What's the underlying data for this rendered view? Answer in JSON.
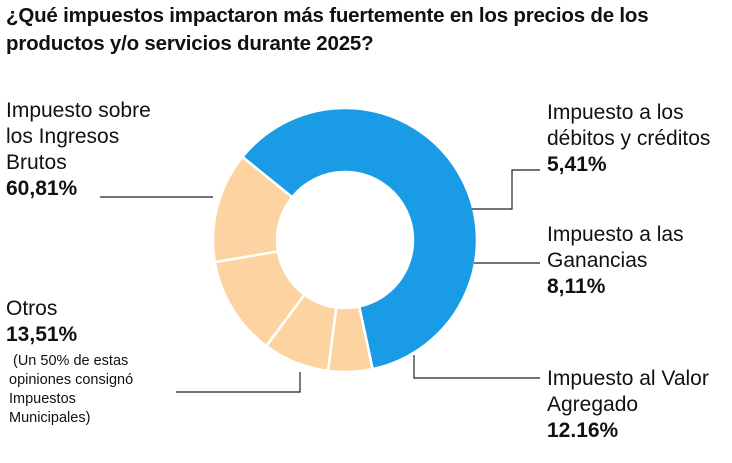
{
  "title": {
    "line1": "¿Qué impuestos impactaron más fuertemente en los precios de los",
    "line2": "productos y/o servicios durante 2025?"
  },
  "colors": {
    "primary": "#1a9be6",
    "secondary": "#fdd4a1",
    "separator": "#ffffff",
    "leader": "#222222"
  },
  "chart_data": {
    "type": "pie",
    "title": "¿Qué impuestos impactaron más fuertemente en los precios de los productos y/o servicios durante 2025?",
    "variant": "donut",
    "slices": [
      {
        "key": "iibb",
        "name_lines": [
          "Impuesto sobre",
          "los Ingresos",
          "Brutos"
        ],
        "value": 60.81,
        "value_label": "60,81%",
        "color": "#1a9be6"
      },
      {
        "key": "debitos",
        "name_lines": [
          "Impuesto a los",
          "débitos y créditos"
        ],
        "value": 5.41,
        "value_label": "5,41%",
        "color": "#fdd4a1"
      },
      {
        "key": "ganancias",
        "name_lines": [
          "Impuesto a las",
          "Ganancias"
        ],
        "value": 8.11,
        "value_label": "8,11%",
        "color": "#fdd4a1"
      },
      {
        "key": "iva",
        "name_lines": [
          "Impuesto al Valor",
          "Agregado"
        ],
        "value": 12.16,
        "value_label": "12.16%",
        "color": "#fdd4a1"
      },
      {
        "key": "otros",
        "name_lines": [
          "Otros"
        ],
        "value": 13.51,
        "value_label": "13,51%",
        "color": "#fdd4a1"
      }
    ],
    "otros_note": [
      "(Un 50% de estas",
      "opiniones consignó",
      "Impuestos",
      "Municipales)"
    ]
  }
}
